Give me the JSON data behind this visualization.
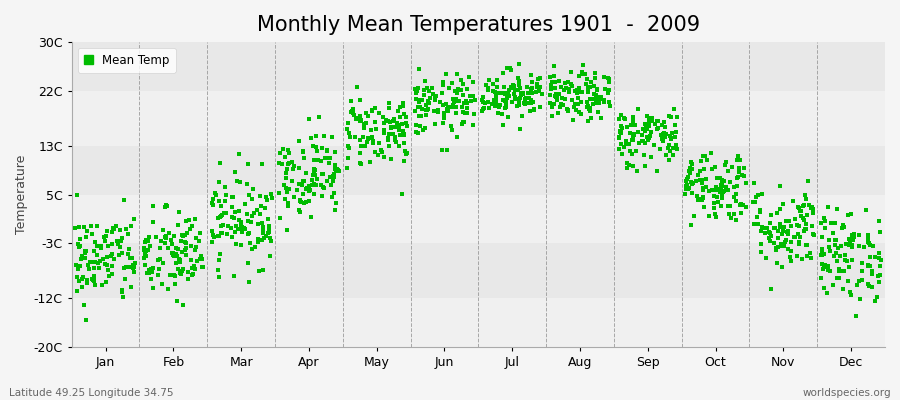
{
  "title": "Monthly Mean Temperatures 1901  -  2009",
  "ylabel": "Temperature",
  "xlabel_labels": [
    "Jan",
    "Feb",
    "Mar",
    "Apr",
    "May",
    "Jun",
    "Jul",
    "Aug",
    "Sep",
    "Oct",
    "Nov",
    "Dec"
  ],
  "ytick_labels": [
    "30C",
    "22C",
    "13C",
    "5C",
    "-3C",
    "-12C",
    "-20C"
  ],
  "ytick_values": [
    30,
    22,
    13,
    5,
    -3,
    -12,
    -20
  ],
  "ylim": [
    -20,
    30
  ],
  "dot_color": "#00bb00",
  "dot_size": 5,
  "background_color": "#f5f5f5",
  "plot_bg_color": "#ebebeb",
  "band_colors": [
    "#e8e8e8",
    "#f0f0f0"
  ],
  "grid_color": "#888888",
  "legend_label": "Mean Temp",
  "footer_left": "Latitude 49.25 Longitude 34.75",
  "footer_right": "worldspecies.org",
  "title_fontsize": 15,
  "label_fontsize": 9,
  "tick_fontsize": 9,
  "monthly_means": [
    -5.5,
    -5.0,
    1.0,
    8.5,
    15.5,
    19.5,
    21.5,
    21.0,
    14.5,
    6.5,
    -0.5,
    -5.0
  ],
  "monthly_stds": [
    3.8,
    3.8,
    3.8,
    3.5,
    3.0,
    2.5,
    2.0,
    2.0,
    2.5,
    3.0,
    3.5,
    3.8
  ],
  "n_points": 109
}
